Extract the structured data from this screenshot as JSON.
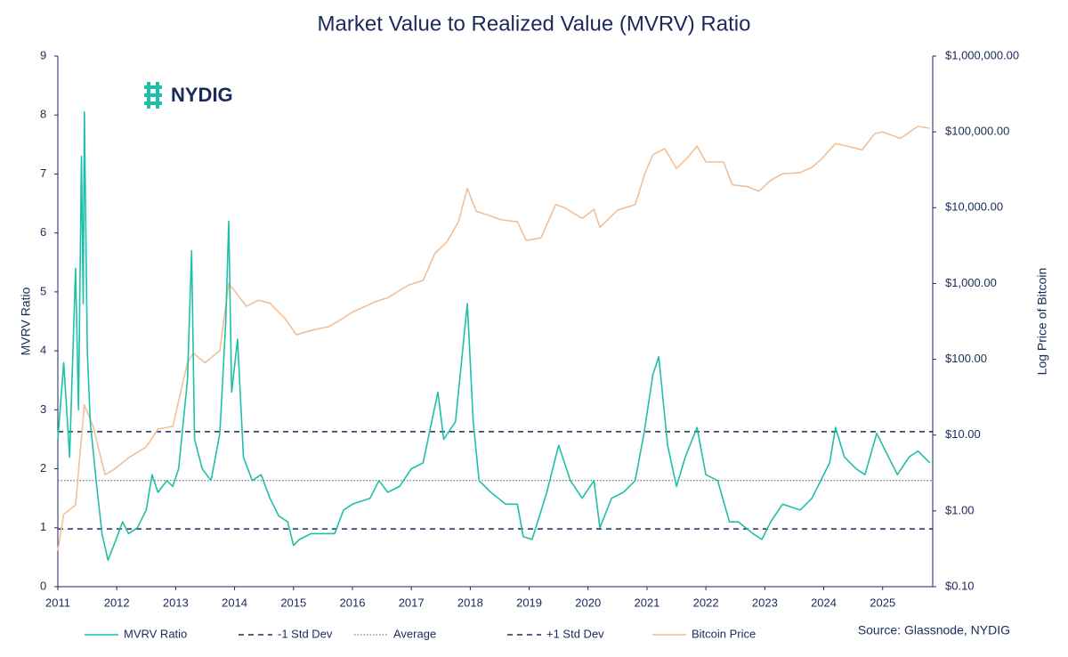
{
  "logo": "NYDIG",
  "chart_data": {
    "type": "line",
    "title": "Market Value to Realized Value (MVRV) Ratio",
    "y_label": "MVRV Ratio",
    "y2_label": "Log Price of Bitcoin",
    "source": "Source: Glassnode, NYDIG",
    "xlim": [
      2011,
      2025.85
    ],
    "xticks": [
      2011,
      2012,
      2013,
      2014,
      2015,
      2016,
      2017,
      2018,
      2019,
      2020,
      2021,
      2022,
      2023,
      2024,
      2025
    ],
    "ylim": [
      0,
      9
    ],
    "yticks": [
      0,
      1,
      2,
      3,
      4,
      5,
      6,
      7,
      8,
      9
    ],
    "y2lim": [
      0.1,
      1000000
    ],
    "y2scale": "log",
    "y2ticks": [
      {
        "value": 0.1,
        "label": "$0.10"
      },
      {
        "value": 1,
        "label": "$1.00"
      },
      {
        "value": 10,
        "label": "$10.00"
      },
      {
        "value": 100,
        "label": "$100.00"
      },
      {
        "value": 1000,
        "label": "$1,000.00"
      },
      {
        "value": 10000,
        "label": "$10,000.00"
      },
      {
        "value": 100000,
        "label": "$100,000.00"
      },
      {
        "value": 1000000,
        "label": "$1,000,000.00"
      }
    ],
    "series": [
      {
        "name": "MVRV Ratio",
        "color": "#1fbfa9",
        "x": [
          2011.0,
          2011.1,
          2011.2,
          2011.3,
          2011.35,
          2011.4,
          2011.43,
          2011.45,
          2011.5,
          2011.55,
          2011.65,
          2011.75,
          2011.85,
          2011.95,
          2012.1,
          2012.2,
          2012.35,
          2012.5,
          2012.6,
          2012.7,
          2012.85,
          2012.95,
          2013.05,
          2013.2,
          2013.27,
          2013.32,
          2013.45,
          2013.6,
          2013.75,
          2013.85,
          2013.9,
          2013.95,
          2014.05,
          2014.15,
          2014.3,
          2014.45,
          2014.6,
          2014.75,
          2014.9,
          2015.0,
          2015.1,
          2015.3,
          2015.5,
          2015.7,
          2015.85,
          2016.0,
          2016.3,
          2016.45,
          2016.6,
          2016.8,
          2017.0,
          2017.2,
          2017.45,
          2017.55,
          2017.75,
          2017.95,
          2018.05,
          2018.15,
          2018.35,
          2018.6,
          2018.8,
          2018.9,
          2019.05,
          2019.3,
          2019.5,
          2019.7,
          2019.9,
          2020.1,
          2020.2,
          2020.4,
          2020.6,
          2020.8,
          2020.95,
          2021.1,
          2021.2,
          2021.35,
          2021.5,
          2021.65,
          2021.85,
          2022.0,
          2022.2,
          2022.4,
          2022.55,
          2022.8,
          2022.95,
          2023.1,
          2023.3,
          2023.6,
          2023.8,
          2023.95,
          2024.1,
          2024.2,
          2024.35,
          2024.55,
          2024.7,
          2024.9,
          2025.05,
          2025.25,
          2025.45,
          2025.6,
          2025.8
        ],
        "values": [
          2.5,
          3.8,
          2.2,
          5.4,
          3.0,
          7.3,
          4.8,
          8.05,
          4.0,
          2.8,
          1.8,
          0.9,
          0.45,
          0.7,
          1.1,
          0.9,
          1.0,
          1.3,
          1.9,
          1.6,
          1.8,
          1.7,
          2.0,
          3.5,
          5.7,
          2.5,
          2.0,
          1.8,
          2.6,
          4.5,
          6.2,
          3.3,
          4.2,
          2.2,
          1.8,
          1.9,
          1.5,
          1.2,
          1.1,
          0.7,
          0.8,
          0.9,
          0.9,
          0.9,
          1.3,
          1.4,
          1.5,
          1.8,
          1.6,
          1.7,
          2.0,
          2.1,
          3.3,
          2.5,
          2.8,
          4.8,
          2.8,
          1.8,
          1.6,
          1.4,
          1.4,
          0.85,
          0.8,
          1.6,
          2.4,
          1.8,
          1.5,
          1.8,
          1.0,
          1.5,
          1.6,
          1.8,
          2.6,
          3.6,
          3.9,
          2.4,
          1.7,
          2.2,
          2.7,
          1.9,
          1.8,
          1.1,
          1.1,
          0.9,
          0.8,
          1.1,
          1.4,
          1.3,
          1.5,
          1.8,
          2.1,
          2.7,
          2.2,
          2.0,
          1.9,
          2.6,
          2.3,
          1.9,
          2.2,
          2.3,
          2.1
        ]
      },
      {
        "name": "Bitcoin Price",
        "color": "#f2bf96",
        "axis": "y2",
        "x": [
          2011.0,
          2011.1,
          2011.3,
          2011.45,
          2011.6,
          2011.8,
          2011.95,
          2012.2,
          2012.5,
          2012.7,
          2012.95,
          2013.2,
          2013.3,
          2013.5,
          2013.75,
          2013.9,
          2014.0,
          2014.2,
          2014.4,
          2014.6,
          2014.85,
          2015.05,
          2015.3,
          2015.6,
          2015.85,
          2016.0,
          2016.4,
          2016.6,
          2016.95,
          2017.2,
          2017.4,
          2017.6,
          2017.8,
          2017.95,
          2018.1,
          2018.3,
          2018.5,
          2018.8,
          2018.95,
          2019.2,
          2019.45,
          2019.6,
          2019.9,
          2020.1,
          2020.2,
          2020.5,
          2020.8,
          2020.97,
          2021.1,
          2021.3,
          2021.5,
          2021.7,
          2021.85,
          2022.0,
          2022.3,
          2022.45,
          2022.7,
          2022.9,
          2023.1,
          2023.3,
          2023.6,
          2023.8,
          2023.95,
          2024.2,
          2024.4,
          2024.65,
          2024.87,
          2025.0,
          2025.3,
          2025.5,
          2025.6,
          2025.8
        ],
        "values": [
          0.3,
          0.9,
          1.2,
          25,
          13,
          3,
          3.5,
          5,
          7,
          12,
          13,
          90,
          120,
          90,
          130,
          1000,
          800,
          500,
          600,
          550,
          350,
          210,
          240,
          270,
          350,
          420,
          580,
          650,
          950,
          1100,
          2500,
          3500,
          6500,
          18000,
          9000,
          8000,
          7000,
          6500,
          3700,
          4000,
          11000,
          10000,
          7200,
          9500,
          5500,
          9300,
          11000,
          29000,
          50000,
          60000,
          33000,
          47000,
          65000,
          40000,
          40000,
          20000,
          19000,
          16500,
          23000,
          28000,
          29000,
          34000,
          43000,
          70000,
          65000,
          58000,
          95000,
          100000,
          82000,
          105000,
          118000,
          112000
        ]
      }
    ],
    "hlines": [
      {
        "name": "-1 Std Dev",
        "value": 0.98,
        "color": "#1a2a5a",
        "dash": "dashed"
      },
      {
        "name": "Average",
        "value": 1.8,
        "color": "#555555",
        "dash": "dotted"
      },
      {
        "name": "+1 Std Dev",
        "value": 2.63,
        "color": "#1a2a5a",
        "dash": "dashed"
      }
    ]
  }
}
